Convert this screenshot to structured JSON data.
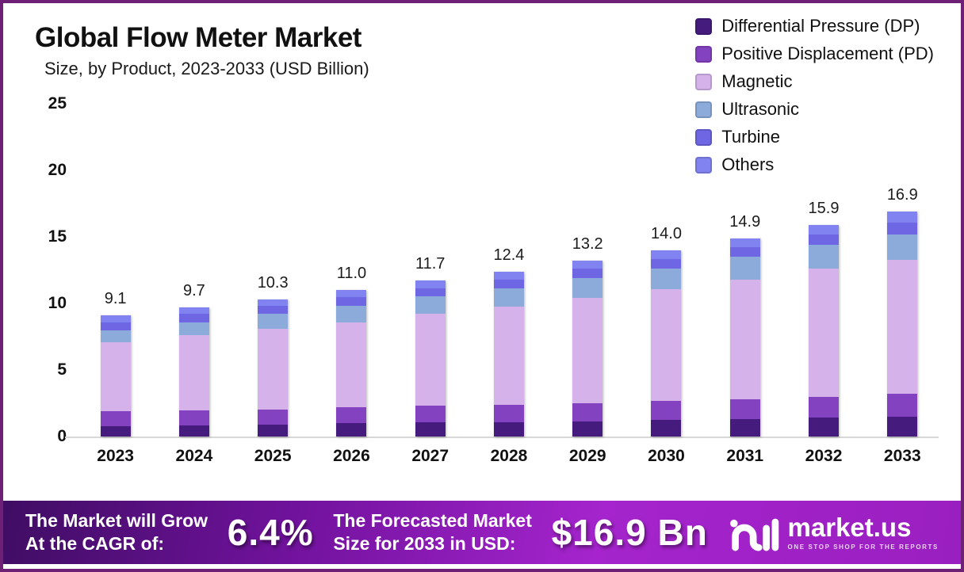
{
  "chart_data": {
    "type": "bar",
    "stacked": true,
    "title": "Global Flow Meter Market",
    "subtitle": "Size, by Product, 2023-2033 (USD Billion)",
    "categories": [
      "2023",
      "2024",
      "2025",
      "2026",
      "2027",
      "2028",
      "2029",
      "2030",
      "2031",
      "2032",
      "2033"
    ],
    "totals": [
      9.1,
      9.7,
      10.3,
      11.0,
      11.7,
      12.4,
      13.2,
      14.0,
      14.9,
      15.9,
      16.9
    ],
    "total_labels": [
      "9.1",
      "9.7",
      "10.3",
      "11.0",
      "11.7",
      "12.4",
      "13.2",
      "14.0",
      "14.9",
      "15.9",
      "16.9"
    ],
    "series": [
      {
        "name": "Differential Pressure (DP)",
        "color": "#451c7d",
        "values": [
          0.8,
          0.85,
          0.9,
          1.0,
          1.05,
          1.1,
          1.15,
          1.25,
          1.3,
          1.4,
          1.5
        ]
      },
      {
        "name": "Positive Displacement (PD)",
        "color": "#8342bf",
        "values": [
          1.1,
          1.1,
          1.15,
          1.2,
          1.25,
          1.3,
          1.35,
          1.4,
          1.5,
          1.6,
          1.7
        ]
      },
      {
        "name": "Magnetic",
        "color": "#d5b3ea",
        "values": [
          5.2,
          5.65,
          6.05,
          6.4,
          6.95,
          7.35,
          7.9,
          8.4,
          9.0,
          9.6,
          10.1
        ]
      },
      {
        "name": "Ultrasonic",
        "color": "#8cabdb",
        "values": [
          0.9,
          1.0,
          1.1,
          1.2,
          1.3,
          1.4,
          1.5,
          1.6,
          1.7,
          1.8,
          1.9
        ]
      },
      {
        "name": "Turbine",
        "color": "#6e66e3",
        "values": [
          0.6,
          0.6,
          0.6,
          0.65,
          0.6,
          0.65,
          0.7,
          0.7,
          0.75,
          0.8,
          0.85
        ]
      },
      {
        "name": "Others",
        "color": "#8184f0",
        "values": [
          0.5,
          0.5,
          0.5,
          0.55,
          0.55,
          0.6,
          0.6,
          0.65,
          0.65,
          0.7,
          0.85
        ]
      }
    ],
    "ylim": [
      0,
      25
    ],
    "yticks": [
      0,
      5,
      10,
      15,
      20,
      25
    ],
    "grid": false,
    "legend_position": "top-right",
    "units": "USD Billion"
  },
  "footer": {
    "cagr_line1": "The Market will Grow",
    "cagr_line2": "At the CAGR of:",
    "cagr_value": "6.4%",
    "size_line1": "The Forecasted Market",
    "size_line2": "Size for 2033 in USD:",
    "size_value": "$16.9 Bn",
    "brand_name": "market.us",
    "brand_tagline": "ONE STOP SHOP FOR THE REPORTS"
  },
  "colors": {
    "frame_border": "#6e2077",
    "banner_gradient_start": "#3f0d63",
    "banner_gradient_mid": "#a524cd",
    "banner_gradient_end": "#9a1fc0",
    "baseline": "#d8d8d8"
  }
}
